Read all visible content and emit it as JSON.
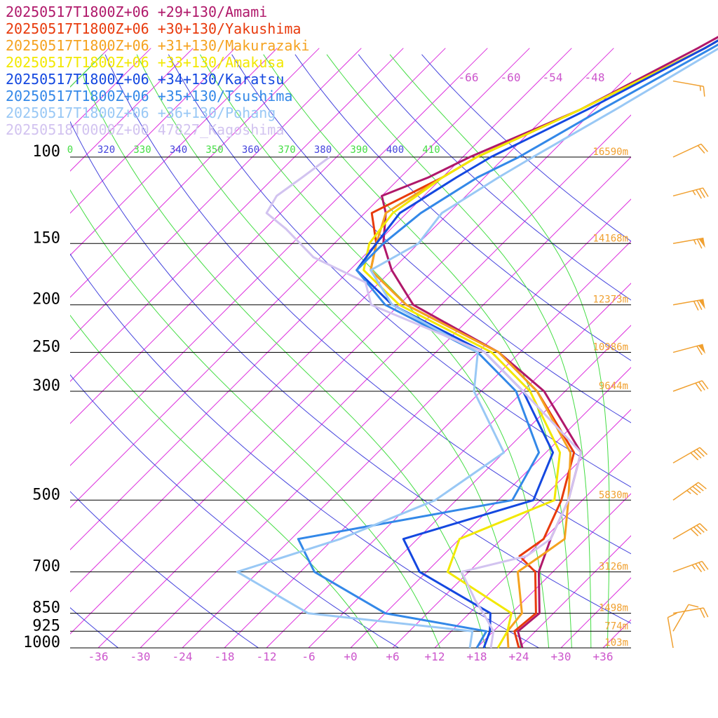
{
  "chart_data": {
    "type": "line",
    "subtype": "skew-T log-P",
    "title": "",
    "xlabel": "",
    "ylabel": "",
    "x_unit": "°C",
    "y_scale": "log (pressure, hPa, inverted)",
    "xlim": [
      -40,
      40
    ],
    "ylim": [
      1000,
      100
    ],
    "pressure_levels": [
      {
        "p": 100,
        "label": "100",
        "height": "16590m"
      },
      {
        "p": 150,
        "label": "150",
        "height": "14168m"
      },
      {
        "p": 200,
        "label": "200",
        "height": "12373m"
      },
      {
        "p": 250,
        "label": "250",
        "height": "10986m"
      },
      {
        "p": 300,
        "label": "300",
        "height": "9644m"
      },
      {
        "p": 500,
        "label": "500",
        "height": "5830m"
      },
      {
        "p": 700,
        "label": "700",
        "height": "3126m"
      },
      {
        "p": 850,
        "label": "850",
        "height": "1498m"
      },
      {
        "p": 925,
        "label": "925",
        "height": "774m"
      },
      {
        "p": 1000,
        "label": "1000",
        "height": "103m"
      }
    ],
    "temperature_ticks": [
      "-36",
      "-30",
      "-24",
      "-18",
      "-12",
      "-6",
      "+0",
      "+6",
      "+12",
      "+18",
      "+24",
      "+30",
      "+36"
    ],
    "upper_temperature_labels": [
      "-66",
      "-60",
      "-54",
      "-48"
    ],
    "theta_labels": [
      {
        "label": "0",
        "color": "#44dd44"
      },
      {
        "label": "320",
        "color": "#4444dd"
      },
      {
        "label": "330",
        "color": "#44dd44"
      },
      {
        "label": "340",
        "color": "#4444dd"
      },
      {
        "label": "350",
        "color": "#44dd44"
      },
      {
        "label": "360",
        "color": "#4444dd"
      },
      {
        "label": "370",
        "color": "#44dd44"
      },
      {
        "label": "380",
        "color": "#4444dd"
      },
      {
        "label": "390",
        "color": "#44dd44"
      },
      {
        "label": "400",
        "color": "#4444dd"
      },
      {
        "label": "410",
        "color": "#44dd44"
      }
    ],
    "series": [
      {
        "name": "20250517T1800Z+06 +29+130/Amami",
        "color": "#b0186a",
        "points": [
          [
            1000,
            24.5
          ],
          [
            925,
            21.5
          ],
          [
            850,
            22
          ],
          [
            700,
            16
          ],
          [
            600,
            13
          ],
          [
            500,
            10
          ],
          [
            400,
            5
          ],
          [
            300,
            -9
          ],
          [
            250,
            -21
          ],
          [
            200,
            -40
          ],
          [
            170,
            -48
          ],
          [
            150,
            -53
          ],
          [
            130,
            -57
          ],
          [
            120,
            -60
          ],
          [
            110,
            -56
          ],
          [
            100,
            -53
          ],
          [
            80,
            -44
          ],
          [
            60,
            -36
          ],
          [
            40,
            -26
          ]
        ]
      },
      {
        "name": "20250517T1800Z+06 +30+130/Yakushima",
        "color": "#e83a0c",
        "points": [
          [
            1000,
            24
          ],
          [
            925,
            21
          ],
          [
            850,
            21.5
          ],
          [
            700,
            15.5
          ],
          [
            650,
            11
          ],
          [
            600,
            12
          ],
          [
            500,
            9
          ],
          [
            400,
            4
          ],
          [
            300,
            -10
          ],
          [
            250,
            -21
          ],
          [
            200,
            -41
          ],
          [
            170,
            -51
          ],
          [
            150,
            -54
          ],
          [
            130,
            -59
          ],
          [
            110,
            -54
          ],
          [
            100,
            -52
          ],
          [
            80,
            -44
          ],
          [
            60,
            -35
          ],
          [
            40,
            -26
          ]
        ]
      },
      {
        "name": "20250517T1800Z+06 +31+130/Makurazaki",
        "color": "#f5a21f",
        "points": [
          [
            1000,
            22.5
          ],
          [
            925,
            20
          ],
          [
            850,
            19.5
          ],
          [
            700,
            13
          ],
          [
            650,
            14
          ],
          [
            600,
            15
          ],
          [
            500,
            10
          ],
          [
            400,
            3.5
          ],
          [
            300,
            -10
          ],
          [
            250,
            -21
          ],
          [
            200,
            -41
          ],
          [
            170,
            -51
          ],
          [
            150,
            -54
          ],
          [
            130,
            -57
          ],
          [
            110,
            -54
          ],
          [
            100,
            -52
          ],
          [
            80,
            -44
          ],
          [
            60,
            -35
          ],
          [
            40,
            -26
          ]
        ]
      },
      {
        "name": "20250517T1800Z+06 +33+130/Amakusa",
        "color": "#f2e800",
        "points": [
          [
            1000,
            21
          ],
          [
            925,
            20
          ],
          [
            850,
            18
          ],
          [
            700,
            3
          ],
          [
            600,
            0
          ],
          [
            500,
            8
          ],
          [
            400,
            2
          ],
          [
            300,
            -11
          ],
          [
            250,
            -22
          ],
          [
            200,
            -42
          ],
          [
            170,
            -52
          ],
          [
            150,
            -55
          ],
          [
            130,
            -56
          ],
          [
            110,
            -54
          ],
          [
            100,
            -52
          ],
          [
            80,
            -44
          ],
          [
            60,
            -35
          ],
          [
            40,
            -26
          ]
        ]
      },
      {
        "name": "20250517T1800Z+06 +34+130/Karatsu",
        "color": "#1448e0",
        "points": [
          [
            1000,
            19
          ],
          [
            925,
            17.5
          ],
          [
            850,
            15
          ],
          [
            700,
            -1
          ],
          [
            600,
            -8
          ],
          [
            500,
            5
          ],
          [
            400,
            1
          ],
          [
            300,
            -12
          ],
          [
            250,
            -23
          ],
          [
            200,
            -43
          ],
          [
            170,
            -53
          ],
          [
            150,
            -54
          ],
          [
            130,
            -55
          ],
          [
            110,
            -52
          ],
          [
            100,
            -50
          ],
          [
            80,
            -43
          ],
          [
            60,
            -35
          ],
          [
            40,
            -26
          ]
        ]
      },
      {
        "name": "20250517T1800Z+06 +35+130/Tsushima",
        "color": "#3388e8",
        "points": [
          [
            1000,
            18
          ],
          [
            925,
            17
          ],
          [
            850,
            0
          ],
          [
            700,
            -16
          ],
          [
            600,
            -23
          ],
          [
            500,
            2
          ],
          [
            400,
            -1
          ],
          [
            300,
            -13
          ],
          [
            250,
            -24
          ],
          [
            200,
            -44
          ],
          [
            170,
            -53
          ],
          [
            150,
            -53
          ],
          [
            130,
            -52
          ],
          [
            110,
            -49
          ],
          [
            100,
            -46
          ],
          [
            80,
            -41
          ],
          [
            60,
            -34
          ],
          [
            40,
            -25
          ]
        ]
      },
      {
        "name": "20250517T1800Z+06 +36+130/Pohang",
        "color": "#99c8f5",
        "points": [
          [
            1000,
            17
          ],
          [
            925,
            15
          ],
          [
            850,
            -11
          ],
          [
            700,
            -27
          ],
          [
            600,
            -17
          ],
          [
            500,
            -9
          ],
          [
            400,
            -6
          ],
          [
            300,
            -19
          ],
          [
            250,
            -24
          ],
          [
            200,
            -43
          ],
          [
            170,
            -51
          ],
          [
            150,
            -48
          ],
          [
            130,
            -49
          ],
          [
            110,
            -46
          ],
          [
            100,
            -44
          ],
          [
            80,
            -39
          ],
          [
            60,
            -33
          ],
          [
            40,
            -24
          ]
        ]
      },
      {
        "name": "20250518T0000Z+00 47827_Kagoshima",
        "color": "#d2c3f0",
        "points": [
          [
            1000,
            20
          ],
          [
            925,
            18
          ],
          [
            850,
            14
          ],
          [
            800,
            11
          ],
          [
            700,
            5
          ],
          [
            650,
            12
          ],
          [
            600,
            13
          ],
          [
            500,
            10
          ],
          [
            400,
            5
          ],
          [
            300,
            -12
          ],
          [
            250,
            -23
          ],
          [
            200,
            -46
          ],
          [
            180,
            -50
          ],
          [
            160,
            -61
          ],
          [
            140,
            -69
          ],
          [
            130,
            -74
          ],
          [
            120,
            -75
          ],
          [
            110,
            -74
          ],
          [
            100,
            -73
          ]
        ]
      }
    ],
    "wind_barbs": [
      {
        "p": 70,
        "dir": 280,
        "speed": 15
      },
      {
        "p": 120,
        "dir": 255,
        "speed": 35
      },
      {
        "p": 100,
        "dir": 245,
        "speed": 20
      },
      {
        "p": 150,
        "dir": 260,
        "speed": 65
      },
      {
        "p": 200,
        "dir": 260,
        "speed": 70
      },
      {
        "p": 250,
        "dir": 255,
        "speed": 60
      },
      {
        "p": 300,
        "dir": 250,
        "speed": 30
      },
      {
        "p": 420,
        "dir": 240,
        "speed": 40
      },
      {
        "p": 500,
        "dir": 235,
        "speed": 45
      },
      {
        "p": 600,
        "dir": 240,
        "speed": 40
      },
      {
        "p": 700,
        "dir": 250,
        "speed": 35
      },
      {
        "p": 850,
        "dir": 260,
        "speed": 20
      },
      {
        "p": 925,
        "dir": 210,
        "speed": 10
      },
      {
        "p": 1000,
        "dir": 170,
        "speed": 10
      }
    ],
    "colors": {
      "isobar": "#000000",
      "isotherm": "#dd33dd",
      "dry_adiabat": "#4444dd",
      "moist_adiabat": "#44dd44",
      "height_label": "#f0a030",
      "wind_barb": "#f0a030"
    },
    "grid": true,
    "legend_placement": "top-left"
  }
}
